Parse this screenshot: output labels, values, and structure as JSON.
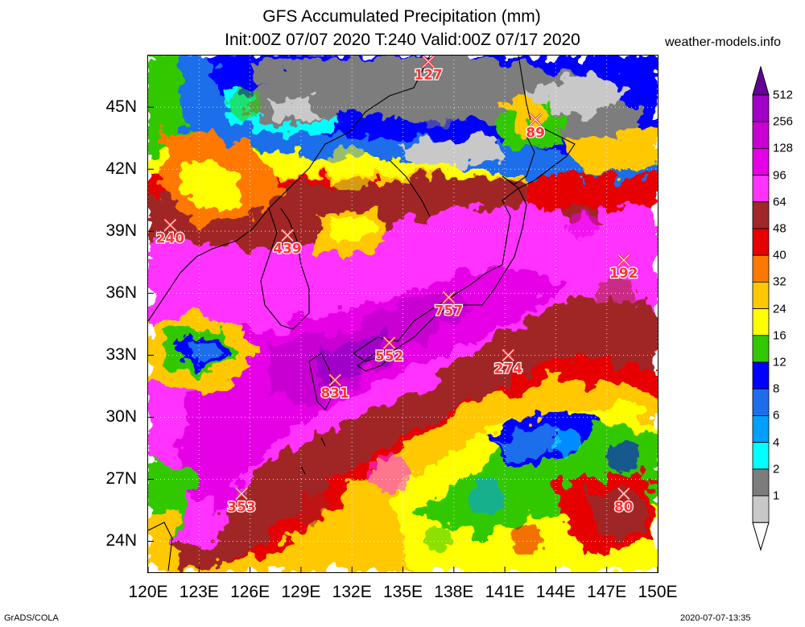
{
  "header": {
    "title": "GFS Accumulated Precipitation (mm)",
    "subtitle": "Init:00Z 07/07 2020 T:240 Valid:00Z 07/17 2020",
    "site": "weather-models.info"
  },
  "footer": {
    "left": "GrADS/COLA",
    "right": "2020-07-07-13:35"
  },
  "axes": {
    "lat_labels": [
      "45N",
      "42N",
      "39N",
      "36N",
      "33N",
      "30N",
      "27N",
      "24N"
    ],
    "lat_values": [
      45,
      42,
      39,
      36,
      33,
      30,
      27,
      24
    ],
    "lon_labels": [
      "120E",
      "123E",
      "126E",
      "129E",
      "132E",
      "135E",
      "138E",
      "141E",
      "144E",
      "147E",
      "150E"
    ],
    "lon_values": [
      120,
      123,
      126,
      129,
      132,
      135,
      138,
      141,
      144,
      147,
      150
    ],
    "lon_range": [
      120,
      150
    ],
    "lat_range": [
      22.5,
      47.5
    ]
  },
  "legend": {
    "levels": [
      "512",
      "256",
      "128",
      "96",
      "64",
      "48",
      "40",
      "32",
      "24",
      "16",
      "12",
      "8",
      "6",
      "4",
      "2",
      "1"
    ],
    "colors": [
      "#a000c8",
      "#c800d2",
      "#e600e6",
      "#ff32ff",
      "#a02828",
      "#e60000",
      "#ff7800",
      "#ffc800",
      "#ffff00",
      "#32c800",
      "#0000ff",
      "#1e6eeb",
      "#00a0ff",
      "#00ffff",
      "#7d7d7d",
      "#c8c8c8"
    ],
    "top_color": "#640096",
    "bottom_color": "#ffffff"
  },
  "markers": [
    {
      "label": "127",
      "lon": 136.5,
      "lat": 47.2
    },
    {
      "label": "89",
      "lon": 142.8,
      "lat": 44.4
    },
    {
      "label": "240",
      "lon": 121.3,
      "lat": 39.3
    },
    {
      "label": "439",
      "lon": 128.2,
      "lat": 38.8
    },
    {
      "label": "192",
      "lon": 148.0,
      "lat": 37.6
    },
    {
      "label": "757",
      "lon": 137.7,
      "lat": 35.8
    },
    {
      "label": "552",
      "lon": 134.2,
      "lat": 33.6
    },
    {
      "label": "274",
      "lon": 141.2,
      "lat": 33.0
    },
    {
      "label": "831",
      "lon": 131.0,
      "lat": 31.8
    },
    {
      "label": "353",
      "lon": 125.5,
      "lat": 26.3
    },
    {
      "label": "80",
      "lon": 148.0,
      "lat": 26.3
    }
  ]
}
